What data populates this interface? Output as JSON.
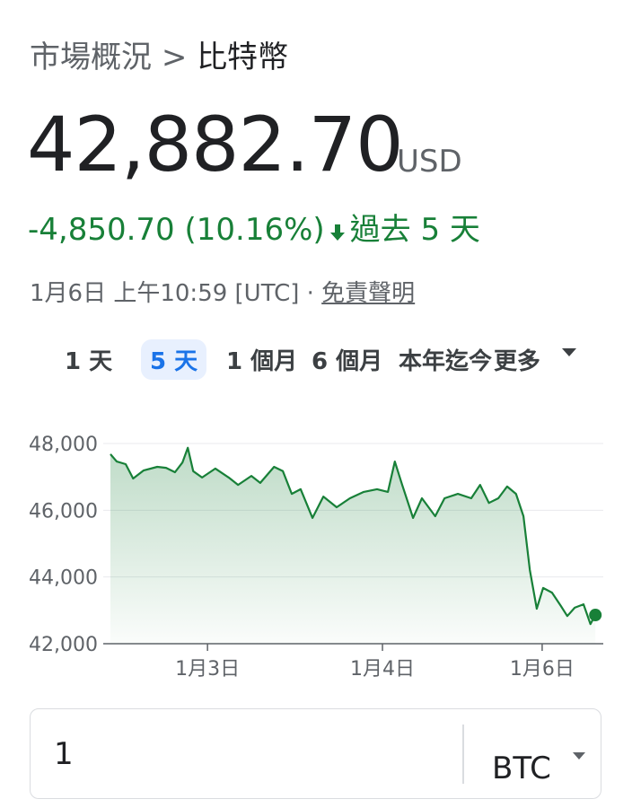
{
  "breadcrumb": {
    "parent": "市場概況",
    "separator": ">",
    "current": "比特幣"
  },
  "quote": {
    "price": "42,882.70",
    "currency": "USD",
    "change": "-4,850.70 (10.16%)",
    "period": "過去 5 天"
  },
  "timestamp": {
    "text": "1月6日 上午10:59 [UTC] ·",
    "disclaimer": "免責聲明"
  },
  "ranges": [
    "1 天",
    "5 天",
    "1 個月",
    "6 個月",
    "本年迄今",
    "更多"
  ],
  "selected_range": 1,
  "chart_data": {
    "type": "line",
    "color": "#188038",
    "grid": true,
    "x": [
      0,
      1.3,
      3.1,
      4.6,
      6.7,
      9.5,
      11.3,
      13.1,
      14.6,
      15.7,
      16.8,
      18.6,
      21.3,
      24.0,
      25.9,
      28.6,
      30.4,
      33.2,
      35.0,
      36.8,
      38.6,
      41.0,
      43.2,
      45.9,
      48.6,
      51.4,
      54.1,
      56.3,
      57.7,
      59.2,
      61.4,
      63.2,
      65.9,
      67.8,
      70.5,
      73.2,
      75.0,
      76.8,
      78.7,
      80.5,
      82.3,
      83.8,
      85.1,
      86.5,
      87.8,
      89.6,
      91.4,
      92.7,
      94.2,
      96.0,
      97.4,
      98.4
    ],
    "values": [
      47680,
      47460,
      47380,
      46950,
      47190,
      47300,
      47270,
      47140,
      47430,
      47870,
      47170,
      46980,
      47250,
      46980,
      46760,
      47030,
      46820,
      47300,
      47170,
      46490,
      46630,
      45770,
      46410,
      46090,
      46360,
      46550,
      46630,
      46550,
      47460,
      46760,
      45770,
      46360,
      45820,
      46360,
      46490,
      46360,
      46760,
      46220,
      46360,
      46710,
      46490,
      45820,
      44210,
      43050,
      43670,
      43530,
      43130,
      42830,
      43080,
      43180,
      42590,
      42860
    ],
    "xlim": [
      0,
      100
    ],
    "xticks": [
      {
        "value": 19.7,
        "label": "1月3日"
      },
      {
        "value": 55.2,
        "label": "1月4日"
      },
      {
        "value": 87.6,
        "label": "1月6日"
      }
    ],
    "ylim": [
      42000,
      48000
    ],
    "yticks": [
      {
        "value": 42000,
        "label": "42,000"
      },
      {
        "value": 44000,
        "label": "44,000"
      },
      {
        "value": 46000,
        "label": "46,000"
      },
      {
        "value": 48000,
        "label": "48,000"
      }
    ]
  },
  "converter": {
    "amount": "1",
    "currency": "BTC"
  }
}
